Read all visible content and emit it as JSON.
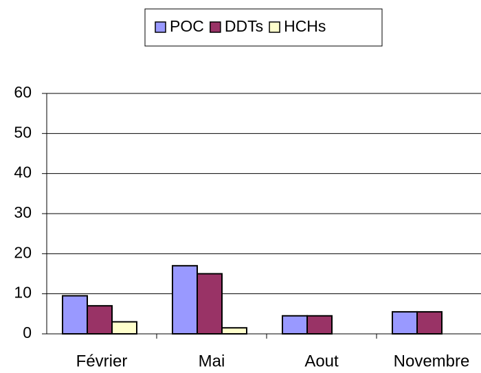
{
  "chart_data": {
    "type": "bar",
    "categories": [
      "Février",
      "Mai",
      "Aout",
      "Novembre"
    ],
    "series": [
      {
        "name": "POC",
        "color": "#9999ff",
        "values": [
          9.5,
          17,
          4.5,
          5.5
        ]
      },
      {
        "name": "DDTs",
        "color": "#993366",
        "values": [
          7,
          15,
          4.5,
          5.5
        ]
      },
      {
        "name": "HCHs",
        "color": "#ffffcc",
        "values": [
          3,
          1.5,
          0,
          0
        ]
      }
    ],
    "ylim": [
      0,
      60
    ],
    "yticks": [
      0,
      10,
      20,
      30,
      40,
      50,
      60
    ],
    "grid": true,
    "legend": "top"
  }
}
